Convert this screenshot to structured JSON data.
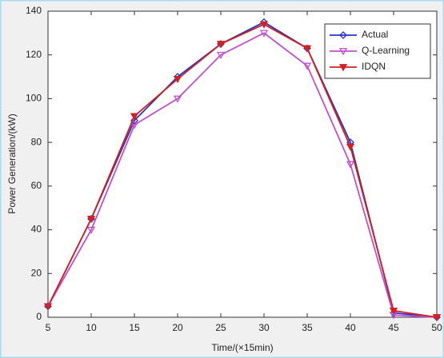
{
  "chart_data": {
    "type": "line",
    "x_label": "Time/(×15min)",
    "y_label": "Power Generation/(kW)",
    "x": [
      5,
      10,
      15,
      20,
      25,
      30,
      35,
      40,
      45,
      50
    ],
    "series": [
      {
        "name": "Actual",
        "color": "#2436c8",
        "marker": "diamond",
        "values": [
          5,
          45,
          90,
          110,
          125,
          135,
          123,
          80,
          2,
          0
        ]
      },
      {
        "name": "Q-Learning",
        "color": "#c050d0",
        "marker": "triangle-down",
        "values": [
          5,
          40,
          88,
          100,
          120,
          130,
          115,
          70,
          1,
          0
        ]
      },
      {
        "name": "IDQN",
        "color": "#d42020",
        "marker": "triangle-down-filled",
        "values": [
          5,
          45,
          92,
          109,
          125,
          134,
          123,
          78,
          3,
          0
        ]
      }
    ],
    "xlim": [
      5,
      50
    ],
    "xticks": [
      5,
      10,
      15,
      20,
      25,
      30,
      35,
      40,
      45,
      50
    ],
    "ylim": [
      0,
      140
    ],
    "yticks": [
      0,
      20,
      40,
      60,
      80,
      100,
      120,
      140
    ],
    "legend": "northeast"
  }
}
